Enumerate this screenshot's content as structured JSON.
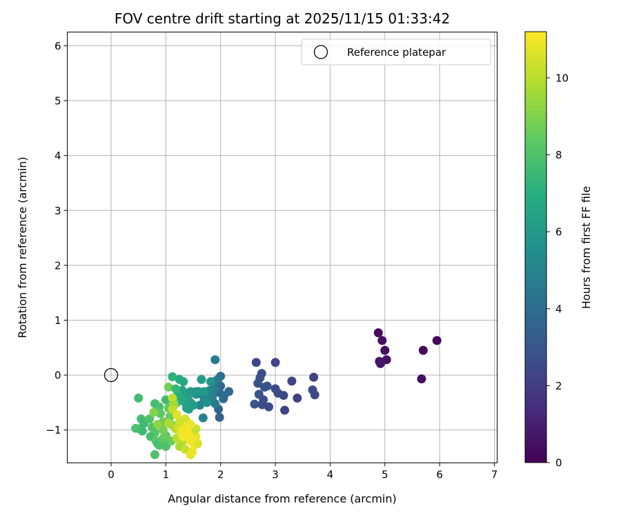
{
  "chart_data": {
    "type": "scatter",
    "title": "FOV centre drift starting at 2025/11/15 01:33:42",
    "xlabel": "Angular distance from reference (arcmin)",
    "ylabel": "Rotation from reference (arcmin)",
    "xlim": [
      -0.8,
      7.05
    ],
    "ylim": [
      -1.6,
      6.25
    ],
    "xticks": [
      "0",
      "1",
      "2",
      "3",
      "4",
      "5",
      "6",
      "7"
    ],
    "yticks": [
      "−1",
      "0",
      "1",
      "2",
      "3",
      "4",
      "5",
      "6"
    ],
    "grid": true,
    "legend": {
      "location": "upper right",
      "entries": [
        "Reference platepar"
      ]
    },
    "reference_point": {
      "x": 0,
      "y": 0
    },
    "colorbar": {
      "label": "Hours from first FF file",
      "range": [
        0,
        11.2
      ],
      "ticks": [
        "0",
        "2",
        "4",
        "6",
        "8",
        "10"
      ],
      "colormap": "viridis"
    },
    "series": [
      {
        "name": "FOV centre drift",
        "points": [
          [
            5.95,
            0.63,
            0.2
          ],
          [
            4.88,
            0.77,
            0.3
          ],
          [
            4.95,
            0.63,
            0.5
          ],
          [
            5.0,
            0.45,
            0.4
          ],
          [
            4.9,
            0.25,
            0.6
          ],
          [
            5.03,
            0.28,
            0.5
          ],
          [
            4.92,
            0.21,
            0.7
          ],
          [
            5.7,
            0.45,
            0.3
          ],
          [
            5.67,
            -0.07,
            0.4
          ],
          [
            2.65,
            0.23,
            2.4
          ],
          [
            3.0,
            0.23,
            2.3
          ],
          [
            3.7,
            -0.04,
            2.2
          ],
          [
            3.68,
            -0.27,
            2.5
          ],
          [
            3.72,
            -0.36,
            2.4
          ],
          [
            2.75,
            0.03,
            2.6
          ],
          [
            2.72,
            -0.05,
            2.7
          ],
          [
            2.8,
            -0.22,
            2.8
          ],
          [
            2.7,
            -0.35,
            2.9
          ],
          [
            2.78,
            -0.45,
            2.7
          ],
          [
            2.62,
            -0.53,
            2.8
          ],
          [
            2.76,
            -0.54,
            2.6
          ],
          [
            2.88,
            -0.58,
            2.5
          ],
          [
            3.0,
            -0.25,
            2.5
          ],
          [
            3.05,
            -0.33,
            2.6
          ],
          [
            3.15,
            -0.37,
            2.4
          ],
          [
            3.3,
            -0.11,
            2.3
          ],
          [
            3.4,
            -0.42,
            2.2
          ],
          [
            3.17,
            -0.64,
            2.3
          ],
          [
            2.68,
            -0.15,
            2.9
          ],
          [
            2.85,
            -0.2,
            2.9
          ],
          [
            1.9,
            0.28,
            4.6
          ],
          [
            2.0,
            -0.02,
            4.0
          ],
          [
            1.95,
            -0.08,
            4.2
          ],
          [
            2.0,
            -0.2,
            3.8
          ],
          [
            1.98,
            -0.32,
            3.9
          ],
          [
            2.05,
            -0.43,
            3.7
          ],
          [
            1.96,
            -0.62,
            3.6
          ],
          [
            1.98,
            -0.77,
            3.5
          ],
          [
            2.15,
            -0.3,
            3.8
          ],
          [
            2.06,
            -0.38,
            3.9
          ],
          [
            1.92,
            -0.1,
            4.5
          ],
          [
            1.88,
            -0.25,
            4.6
          ],
          [
            1.85,
            -0.4,
            4.8
          ],
          [
            1.9,
            -0.52,
            4.7
          ],
          [
            1.8,
            -0.28,
            5.0
          ],
          [
            1.75,
            -0.38,
            5.1
          ],
          [
            1.7,
            -0.46,
            5.0
          ],
          [
            1.65,
            -0.35,
            5.3
          ],
          [
            1.6,
            -0.3,
            5.4
          ],
          [
            1.55,
            -0.35,
            5.5
          ],
          [
            1.62,
            -0.55,
            5.2
          ],
          [
            1.68,
            -0.78,
            5.0
          ],
          [
            1.75,
            -0.5,
            5.6
          ],
          [
            1.7,
            -0.3,
            6.0
          ],
          [
            1.65,
            -0.08,
            6.2
          ],
          [
            1.82,
            -0.12,
            5.8
          ],
          [
            1.25,
            -0.08,
            6.8
          ],
          [
            1.32,
            -0.12,
            6.6
          ],
          [
            1.3,
            -0.28,
            6.5
          ],
          [
            1.35,
            -0.35,
            6.4
          ],
          [
            1.4,
            -0.42,
            6.3
          ],
          [
            1.45,
            -0.5,
            6.2
          ],
          [
            1.5,
            -0.55,
            6.1
          ],
          [
            1.38,
            -0.6,
            6.2
          ],
          [
            1.28,
            -0.45,
            6.6
          ],
          [
            1.22,
            -0.35,
            6.9
          ],
          [
            1.45,
            -0.3,
            6.1
          ],
          [
            1.12,
            -0.03,
            7.2
          ],
          [
            1.55,
            -0.3,
            5.9
          ],
          [
            1.35,
            -0.5,
            6.5
          ],
          [
            1.42,
            -0.62,
            6.3
          ],
          [
            1.2,
            -0.5,
            6.9
          ],
          [
            1.05,
            -0.22,
            8.8
          ],
          [
            1.18,
            -0.25,
            7.4
          ],
          [
            1.0,
            -0.45,
            7.6
          ],
          [
            0.8,
            -0.52,
            7.8
          ],
          [
            0.88,
            -0.58,
            7.9
          ],
          [
            0.5,
            -0.42,
            7.7
          ],
          [
            0.55,
            -0.8,
            7.8
          ],
          [
            0.6,
            -0.88,
            7.6
          ],
          [
            0.52,
            -0.98,
            7.5
          ],
          [
            0.45,
            -0.97,
            7.9
          ],
          [
            0.57,
            -1.02,
            7.6
          ],
          [
            0.7,
            -0.8,
            8.0
          ],
          [
            0.75,
            -0.95,
            8.1
          ],
          [
            0.8,
            -1.05,
            8.2
          ],
          [
            0.72,
            -1.12,
            7.8
          ],
          [
            0.82,
            -1.2,
            8.3
          ],
          [
            0.88,
            -1.28,
            8.1
          ],
          [
            0.8,
            -1.45,
            8.0
          ],
          [
            0.85,
            -1.25,
            7.9
          ],
          [
            0.95,
            -1.15,
            8.4
          ],
          [
            1.0,
            -1.1,
            8.5
          ],
          [
            1.02,
            -1.25,
            8.2
          ],
          [
            1.0,
            -1.3,
            8.0
          ],
          [
            1.1,
            -1.2,
            8.6
          ],
          [
            0.9,
            -0.7,
            8.3
          ],
          [
            0.95,
            -0.85,
            8.7
          ],
          [
            1.05,
            -0.6,
            8.4
          ],
          [
            1.08,
            -0.75,
            8.6
          ],
          [
            0.95,
            -1.0,
            8.8
          ],
          [
            0.85,
            -0.9,
            9.2
          ],
          [
            0.78,
            -0.68,
            9.0
          ],
          [
            1.15,
            -0.5,
            8.5
          ],
          [
            1.1,
            -0.9,
            9.0
          ],
          [
            1.12,
            -0.42,
            10.1
          ],
          [
            1.15,
            -0.55,
            9.6
          ],
          [
            1.05,
            -0.88,
            9.8
          ],
          [
            1.18,
            -0.98,
            9.9
          ],
          [
            1.2,
            -1.15,
            10.0
          ],
          [
            1.3,
            -1.22,
            10.1
          ],
          [
            1.25,
            -1.3,
            9.8
          ],
          [
            1.35,
            -1.35,
            10.2
          ],
          [
            1.45,
            -1.45,
            10.8
          ],
          [
            1.48,
            -1.4,
            10.9
          ],
          [
            1.52,
            -1.28,
            11.0
          ],
          [
            1.58,
            -1.25,
            10.6
          ],
          [
            1.55,
            -1.12,
            10.9
          ],
          [
            1.5,
            -1.05,
            10.7
          ],
          [
            1.42,
            -1.1,
            11.1
          ],
          [
            1.4,
            -0.95,
            11.0
          ],
          [
            1.38,
            -0.85,
            10.8
          ],
          [
            1.35,
            -0.8,
            10.5
          ],
          [
            1.3,
            -0.92,
            10.9
          ],
          [
            1.25,
            -0.85,
            10.4
          ],
          [
            1.22,
            -0.95,
            10.3
          ],
          [
            1.28,
            -1.05,
            10.6
          ],
          [
            1.32,
            -1.12,
            11.1
          ],
          [
            1.45,
            -1.2,
            11.0
          ],
          [
            1.55,
            -0.98,
            10.2
          ],
          [
            1.45,
            -0.9,
            10.9
          ],
          [
            1.12,
            -0.62,
            10.0
          ],
          [
            1.2,
            -0.72,
            10.6
          ],
          [
            1.38,
            -1.0,
            11.1
          ],
          [
            1.3,
            -1.0,
            11.0
          ]
        ]
      }
    ]
  }
}
